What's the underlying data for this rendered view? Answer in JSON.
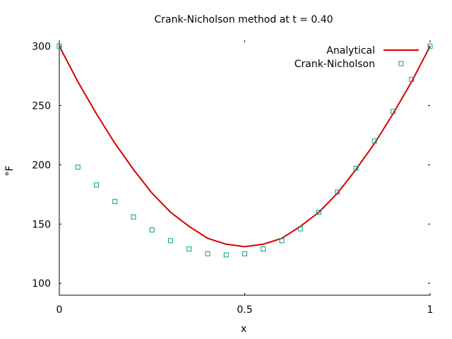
{
  "chart_data": {
    "type": "line",
    "title": "Crank-Nicholson method at t = 0.40",
    "xlabel": "x",
    "ylabel": "°F",
    "xlim": [
      0,
      1
    ],
    "ylim": [
      90,
      305
    ],
    "xticks": [
      0,
      0.5,
      1
    ],
    "xtick_labels": [
      "0",
      "0.5",
      "1"
    ],
    "yticks": [
      100,
      150,
      200,
      250,
      300
    ],
    "ytick_labels": [
      "100",
      "150",
      "200",
      "250",
      "300"
    ],
    "grid": false,
    "legend_position": "top-right",
    "series": [
      {
        "name": "Analytical",
        "kind": "line",
        "color": "#d40000",
        "x": [
          0,
          0.05,
          0.1,
          0.15,
          0.2,
          0.25,
          0.3,
          0.35,
          0.4,
          0.45,
          0.5,
          0.55,
          0.6,
          0.65,
          0.7,
          0.75,
          0.8,
          0.85,
          0.9,
          0.95,
          1
        ],
        "y": [
          300,
          270,
          243,
          218,
          196,
          176,
          160,
          148,
          138,
          133,
          131,
          133,
          138,
          148,
          160,
          176,
          196,
          218,
          243,
          270,
          300
        ]
      },
      {
        "name": "Crank-Nicholson",
        "kind": "scatter",
        "marker": "square",
        "color": "#00a080",
        "x": [
          0,
          0.05,
          0.1,
          0.15,
          0.2,
          0.25,
          0.3,
          0.35,
          0.4,
          0.45,
          0.5,
          0.55,
          0.6,
          0.65,
          0.7,
          0.75,
          0.8,
          0.85,
          0.9,
          0.95,
          1
        ],
        "y": [
          300,
          198,
          183,
          169,
          156,
          145,
          136,
          129,
          125,
          124,
          125,
          129,
          136,
          146,
          160,
          177,
          197,
          220,
          245,
          272,
          300
        ]
      }
    ]
  }
}
